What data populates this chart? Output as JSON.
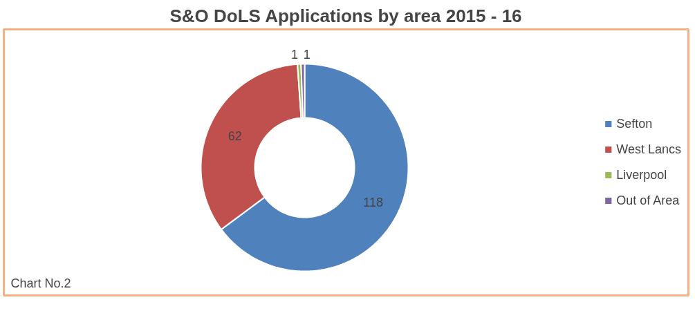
{
  "chart_data": {
    "type": "donut",
    "title": "S&O DoLS Applications by area 2015 - 16",
    "categories": [
      "Sefton",
      "West Lancs",
      "Liverpool",
      "Out of Area"
    ],
    "values": [
      118,
      62,
      1,
      1
    ],
    "colors": [
      "#4f81bd",
      "#c0504d",
      "#9bbb59",
      "#8064a2"
    ],
    "data_labels": true,
    "legend": "right",
    "annotations": [
      "Chart No.2"
    ]
  }
}
